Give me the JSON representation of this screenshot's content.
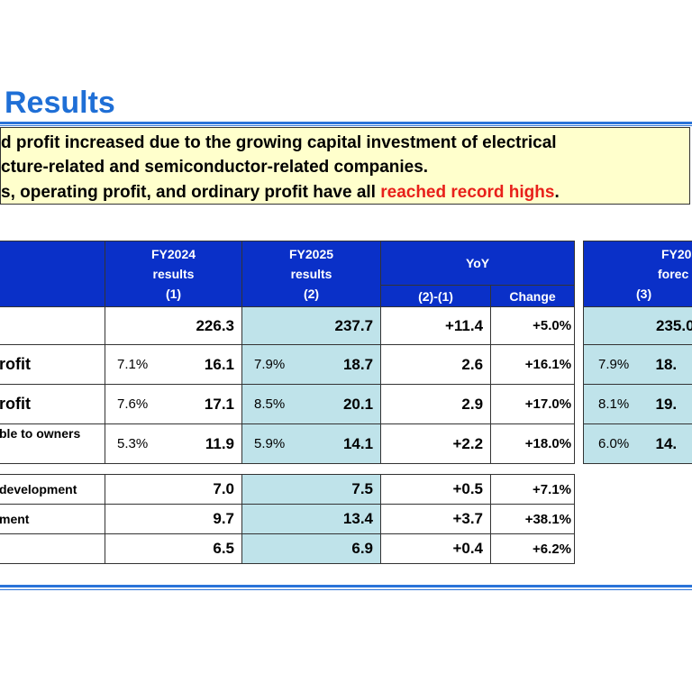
{
  "title": "Results",
  "summary": {
    "line1": "d profit increased due to the growing capital investment of electrical",
    "line2": "cture-related and semiconductor-related companies.",
    "line3_prefix": "s, operating profit, and ordinary profit have all ",
    "line3_highlight": "reached record highs",
    "line3_suffix": "."
  },
  "table_header": {
    "fy2024": [
      "FY2024",
      "results",
      "(1)"
    ],
    "fy2025": [
      "FY2025",
      "results",
      "(2)"
    ],
    "yoy": "YoY",
    "yoy_diff": "(2)-(1)",
    "yoy_change": "Change",
    "forecast": [
      "FY20",
      "forec",
      "(3)"
    ]
  },
  "rows": [
    {
      "label": "",
      "fy24_pct": "",
      "fy24": "226.3",
      "fy25_pct": "",
      "fy25": "237.7",
      "diff": "+11.4",
      "change": "+5.0%",
      "fc_pct": "",
      "fc": "235.0"
    },
    {
      "label": "rofit",
      "fy24_pct": "7.1%",
      "fy24": "16.1",
      "fy25_pct": "7.9%",
      "fy25": "18.7",
      "diff": "2.6",
      "change": "+16.1%",
      "fc_pct": "7.9%",
      "fc": "18."
    },
    {
      "label": "rofit",
      "fy24_pct": "7.6%",
      "fy24": "17.1",
      "fy25_pct": "8.5%",
      "fy25": "20.1",
      "diff": "2.9",
      "change": "+17.0%",
      "fc_pct": "8.1%",
      "fc": "19."
    },
    {
      "label": "ble to owners",
      "fy24_pct": "5.3%",
      "fy24": "11.9",
      "fy25_pct": "5.9%",
      "fy25": "14.1",
      "diff": "+2.2",
      "change": "+18.0%",
      "fc_pct": "6.0%",
      "fc": "14."
    }
  ],
  "rows2": [
    {
      "label": "development",
      "fy24": "7.0",
      "fy25": "7.5",
      "diff": "+0.5",
      "change": "+7.1%"
    },
    {
      "label": "ment",
      "fy24": "9.7",
      "fy25": "13.4",
      "diff": "+3.7",
      "change": "+38.1%"
    },
    {
      "label": "",
      "fy24": "6.5",
      "fy25": "6.9",
      "diff": "+0.4",
      "change": "+6.2%"
    }
  ],
  "colors": {
    "title": "#1f6fd6",
    "header": "#0a30c8",
    "highlight_cell": "#bfe3ea",
    "summary_bg": "#ffffcc",
    "accent_red": "#e8201a"
  }
}
